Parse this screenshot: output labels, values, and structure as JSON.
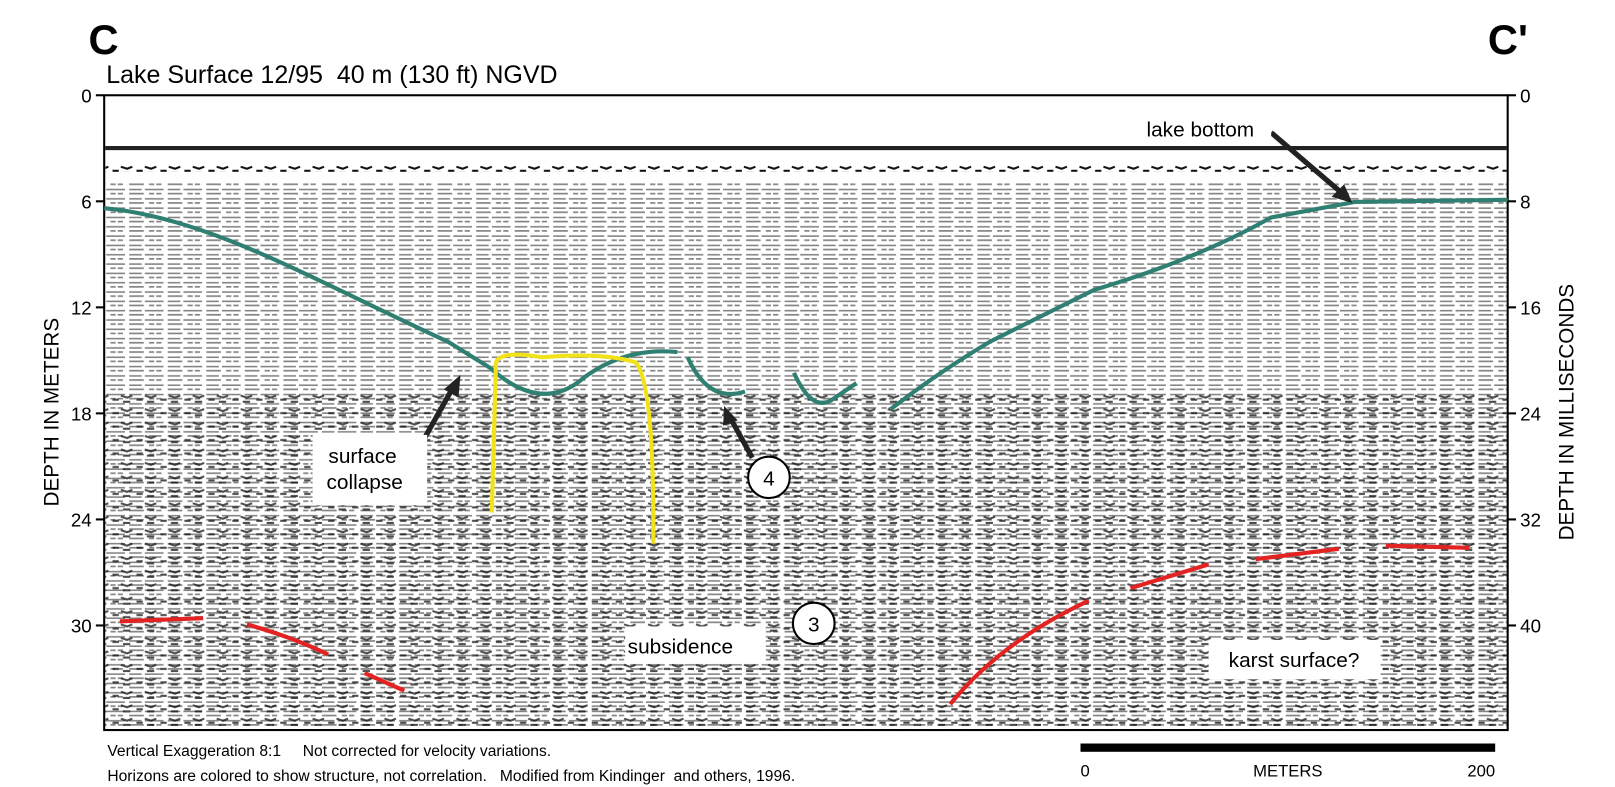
{
  "header": {
    "left_mark": "C",
    "right_mark": "C'",
    "title": "Lake Surface 12/95  40 m (130 ft) NGVD"
  },
  "left_axis": {
    "label": "DEPTH IN METERS",
    "ticks": [
      0,
      6,
      12,
      18,
      24,
      30
    ]
  },
  "right_axis": {
    "label": "DEPTH IN MILLISECONDS",
    "ticks": [
      0,
      8,
      16,
      24,
      32,
      40
    ]
  },
  "annotations": {
    "lake_bottom": "lake bottom",
    "surface_collapse": [
      "surface",
      "collapse"
    ],
    "circle_4": "4",
    "circle_3": "3",
    "subsidence": "subsidence",
    "karst": "karst surface?"
  },
  "footnote": [
    "Vertical Exaggeration 8:1     Not corrected for velocity variations.",
    "Horizons are colored to show structure, not correlation.   Modified from Kindinger  and others, 1996."
  ],
  "scale_bar": {
    "ticks": [
      0,
      200
    ],
    "label": "METERS"
  }
}
